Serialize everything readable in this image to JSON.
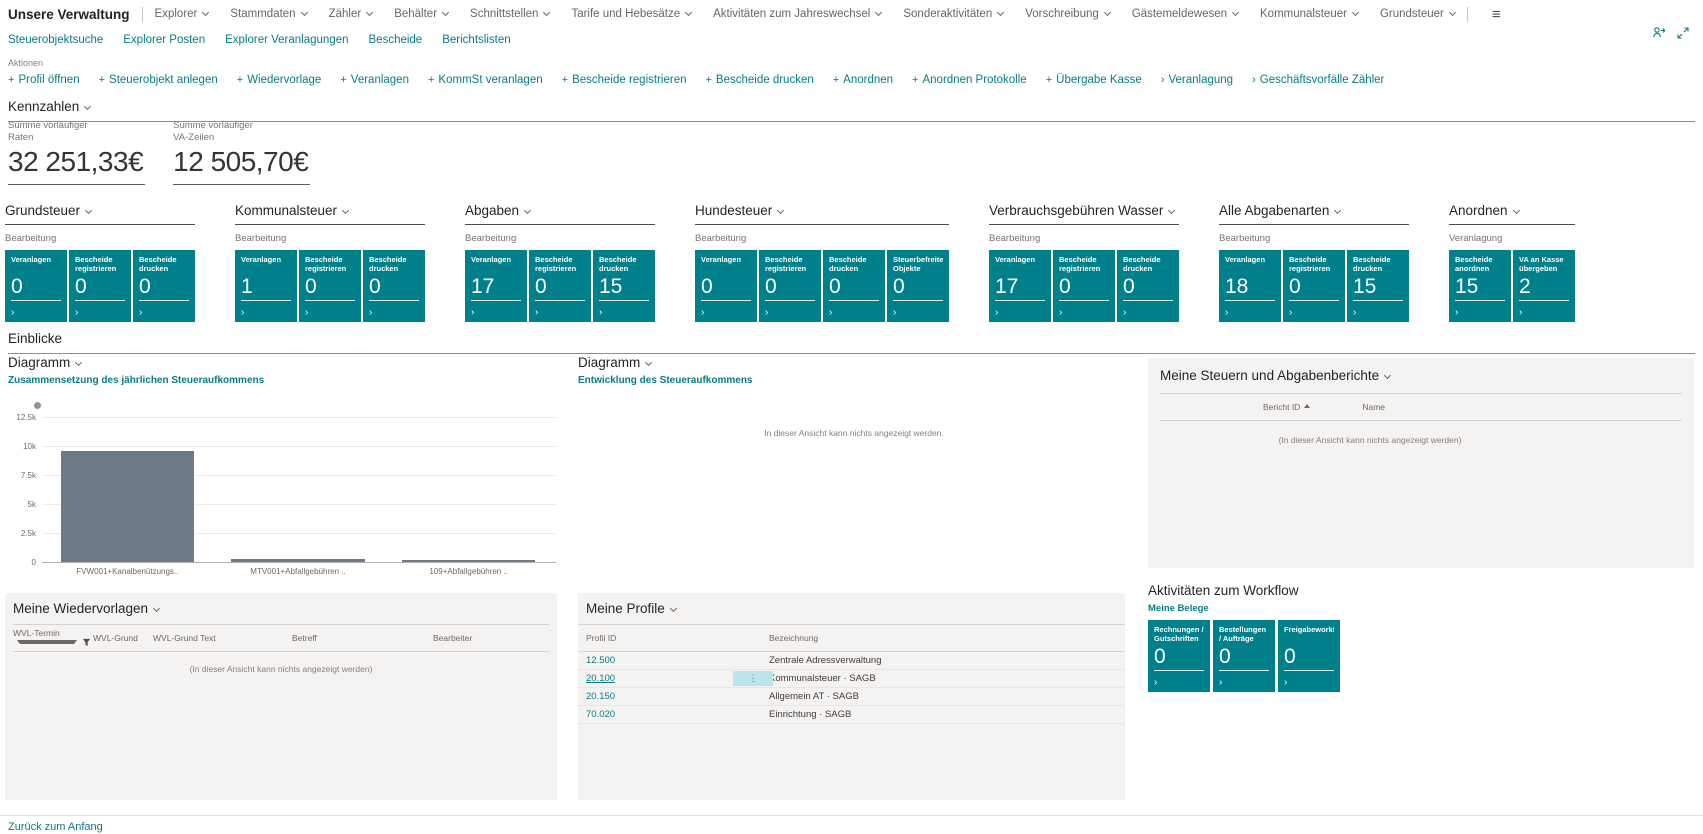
{
  "colors": {
    "accent": "#077d87",
    "tile": "#00808a",
    "selection": "#b9e6ea",
    "bar": "#6d7a88"
  },
  "app": {
    "title": "Unsere Verwaltung"
  },
  "topnav": {
    "items": [
      {
        "label": "Explorer"
      },
      {
        "label": "Stammdaten"
      },
      {
        "label": "Zähler"
      },
      {
        "label": "Behälter"
      },
      {
        "label": "Schnittstellen"
      },
      {
        "label": "Tarife und Hebesätze"
      },
      {
        "label": "Aktivitäten zum Jahreswechsel"
      },
      {
        "label": "Sonderaktivitäten"
      },
      {
        "label": "Vorschreibung"
      },
      {
        "label": "Gästemeldewesen"
      },
      {
        "label": "Kommunalsteuer"
      },
      {
        "label": "Grundsteuer"
      }
    ],
    "menu_icon": "hamburger"
  },
  "subnav": {
    "items": [
      {
        "label": "Steuerobjektsuche"
      },
      {
        "label": "Explorer Posten"
      },
      {
        "label": "Explorer Veranlagungen"
      },
      {
        "label": "Bescheide"
      },
      {
        "label": "Berichtslisten"
      }
    ]
  },
  "actions": {
    "caption": "Aktionen",
    "items": [
      {
        "prefix": "+",
        "label": "Profil öffnen"
      },
      {
        "prefix": "+",
        "label": "Steuerobjekt anlegen"
      },
      {
        "prefix": "+",
        "label": "Wiedervorlage"
      },
      {
        "prefix": "+",
        "label": "Veranlagen"
      },
      {
        "prefix": "+",
        "label": "KommSt veranlagen"
      },
      {
        "prefix": "+",
        "label": "Bescheide registrieren"
      },
      {
        "prefix": "+",
        "label": "Bescheide drucken"
      },
      {
        "prefix": "+",
        "label": "Anordnen"
      },
      {
        "prefix": "+",
        "label": "Anordnen Protokolle"
      },
      {
        "prefix": "+",
        "label": "Übergabe Kasse"
      },
      {
        "prefix": "›",
        "label": "Veranlagung"
      },
      {
        "prefix": "›",
        "label": "Geschäftsvorfälle Zähler"
      }
    ]
  },
  "kennzahlen": {
    "title": "Kennzahlen",
    "kpis": [
      {
        "caption": "Summe vorläufiger Raten",
        "value": "32 251,33€"
      },
      {
        "caption": "Summe vorläufiger VA-Zeilen",
        "value": "12 505,70€"
      }
    ]
  },
  "cue_groups": [
    {
      "title": "Grundsteuer",
      "caption": "Bearbeitung",
      "tiles": [
        {
          "label": "Veranlagen",
          "value": "0"
        },
        {
          "label": "Bescheide registrieren",
          "value": "0"
        },
        {
          "label": "Bescheide drucken",
          "value": "0"
        }
      ]
    },
    {
      "title": "Kommunalsteuer",
      "caption": "Bearbeitung",
      "tiles": [
        {
          "label": "Veranlagen",
          "value": "1"
        },
        {
          "label": "Bescheide registrieren",
          "value": "0"
        },
        {
          "label": "Bescheide drucken",
          "value": "0"
        }
      ]
    },
    {
      "title": "Abgaben",
      "caption": "Bearbeitung",
      "tiles": [
        {
          "label": "Veranlagen",
          "value": "17"
        },
        {
          "label": "Bescheide registrieren",
          "value": "0"
        },
        {
          "label": "Bescheide drucken",
          "value": "15"
        }
      ]
    },
    {
      "title": "Hundesteuer",
      "caption": "Bearbeitung",
      "tiles": [
        {
          "label": "Veranlagen",
          "value": "0"
        },
        {
          "label": "Bescheide registrieren",
          "value": "0"
        },
        {
          "label": "Bescheide drucken",
          "value": "0"
        },
        {
          "label": "Steuerbefreite Objekte",
          "value": "0"
        }
      ]
    },
    {
      "title": "Verbrauchsgebühren Wasser",
      "caption": "Bearbeitung",
      "tiles": [
        {
          "label": "Veranlagen",
          "value": "17"
        },
        {
          "label": "Bescheide registrieren",
          "value": "0"
        },
        {
          "label": "Bescheide drucken",
          "value": "0"
        }
      ]
    },
    {
      "title": "Alle Abgabenarten",
      "caption": "Bearbeitung",
      "tiles": [
        {
          "label": "Veranlagen",
          "value": "18"
        },
        {
          "label": "Bescheide registrieren",
          "value": "0"
        },
        {
          "label": "Bescheide drucken",
          "value": "15"
        }
      ]
    },
    {
      "title": "Anordnen",
      "caption": "Veranlagung",
      "tiles": [
        {
          "label": "Bescheide anordnen",
          "value": "15"
        },
        {
          "label": "VA an Kasse übergeben",
          "value": "2"
        }
      ]
    }
  ],
  "einblicke": {
    "title": "Einblicke"
  },
  "chart1": {
    "title": "Diagramm",
    "link": "Zusammensetzung des jährlichen Steueraufkommens"
  },
  "chart_data": {
    "type": "bar",
    "title": "Zusammensetzung des jährlichen Steueraufkommens",
    "categories": [
      "FVW001+Kanalbenützungs..",
      "MTV001+Abfallgebühren ..",
      "109+Abfallgebühren .."
    ],
    "values": [
      9600,
      250,
      150
    ],
    "ylabel": "",
    "xlabel": "",
    "ylim": [
      0,
      12500
    ],
    "yticks": [
      "12.5k",
      "10k",
      "7.5k",
      "5k",
      "2.5k",
      "0"
    ],
    "grid": true,
    "legend": [
      {
        "marker": "dot",
        "label": ""
      }
    ],
    "bar_color": "#6d7a88"
  },
  "chart2": {
    "title": "Diagramm",
    "link": "Entwicklung des Steueraufkommens",
    "empty_message": "In dieser Ansicht kann nichts angezeigt werden."
  },
  "reports_panel": {
    "title": "Meine Steuern und Abgabenberichte",
    "columns": [
      {
        "label": "Bericht ID"
      },
      {
        "label": "Name"
      }
    ],
    "sorted_column": "Bericht ID",
    "empty_message": "(In dieser Ansicht kann nichts angezeigt werden)"
  },
  "wiedervorlagen": {
    "title": "Meine Wiedervorlagen",
    "columns": [
      {
        "label": "WVL-Termin"
      },
      {
        "label": "WVL-Grund"
      },
      {
        "label": "WVL-Grund Text"
      },
      {
        "label": "Betreff"
      },
      {
        "label": "Bearbeiter"
      }
    ],
    "empty_message": "(In dieser Ansicht kann nichts angezeigt werden)"
  },
  "profile": {
    "title": "Meine Profile",
    "columns": [
      {
        "label": "Profil ID"
      },
      {
        "label": "Bezeichnung"
      }
    ],
    "rows": [
      {
        "id": "12.500",
        "name": "Zentrale Adressverwaltung"
      },
      {
        "id": "20.100",
        "name": "Kommunalsteuer · SAGB"
      },
      {
        "id": "20.150",
        "name": "Allgemein AT · SAGB"
      },
      {
        "id": "70.020",
        "name": "Einrichtung · SAGB"
      }
    ],
    "selected_row_index": 1,
    "selected_cell_menu": "⋮"
  },
  "workflow": {
    "title": "Aktivitäten zum Workflow",
    "caption": "Meine Belege",
    "tiles": [
      {
        "label": "Rechnungen / Gutschriften",
        "value": "0"
      },
      {
        "label": "Bestellungen / Aufträge",
        "value": "0"
      },
      {
        "label": "Freigabeworkfl...",
        "value": "0"
      }
    ]
  },
  "footer": {
    "back_to_top": "Zurück zum Anfang"
  }
}
